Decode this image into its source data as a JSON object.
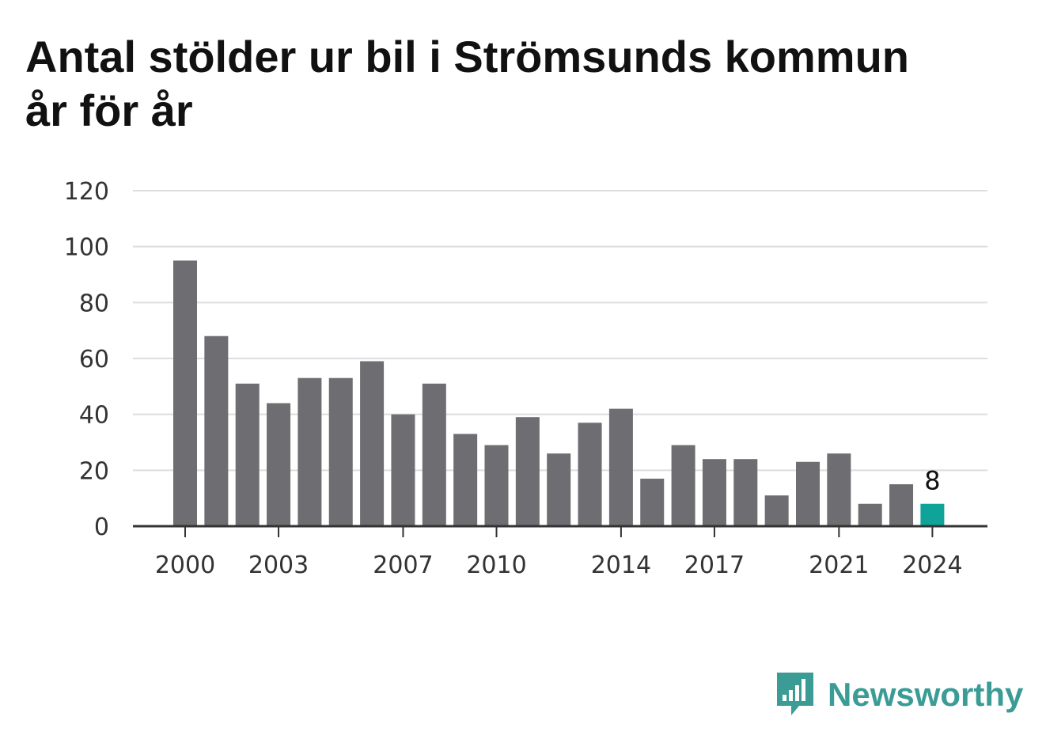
{
  "chart_data": {
    "type": "bar",
    "title": "Antal stölder ur bil i Strömsunds kommun år för år",
    "categories": [
      "2000",
      "2001",
      "2002",
      "2003",
      "2004",
      "2005",
      "2006",
      "2007",
      "2008",
      "2009",
      "2010",
      "2011",
      "2012",
      "2013",
      "2014",
      "2015",
      "2016",
      "2017",
      "2018",
      "2019",
      "2020",
      "2021",
      "2022",
      "2023",
      "2024"
    ],
    "values": [
      95,
      68,
      51,
      44,
      53,
      53,
      59,
      40,
      51,
      33,
      29,
      39,
      26,
      37,
      42,
      17,
      29,
      24,
      24,
      11,
      23,
      26,
      8,
      15,
      8
    ],
    "x_tick_labels": [
      "2000",
      "2003",
      "2007",
      "2010",
      "2014",
      "2017",
      "2021",
      "2024"
    ],
    "y_ticks": [
      0,
      20,
      40,
      60,
      80,
      100,
      120
    ],
    "ylim": [
      0,
      120
    ],
    "grid": true,
    "highlight_index": 24,
    "highlight_label": "8",
    "colors": {
      "bar": "#6d6d72",
      "highlight": "#0fa39a",
      "grid": "#dddddd",
      "axis": "#333333"
    }
  },
  "brand": {
    "name": "Newsworthy",
    "icon": "newsworthy-logo-icon",
    "color": "#3a9c95"
  }
}
